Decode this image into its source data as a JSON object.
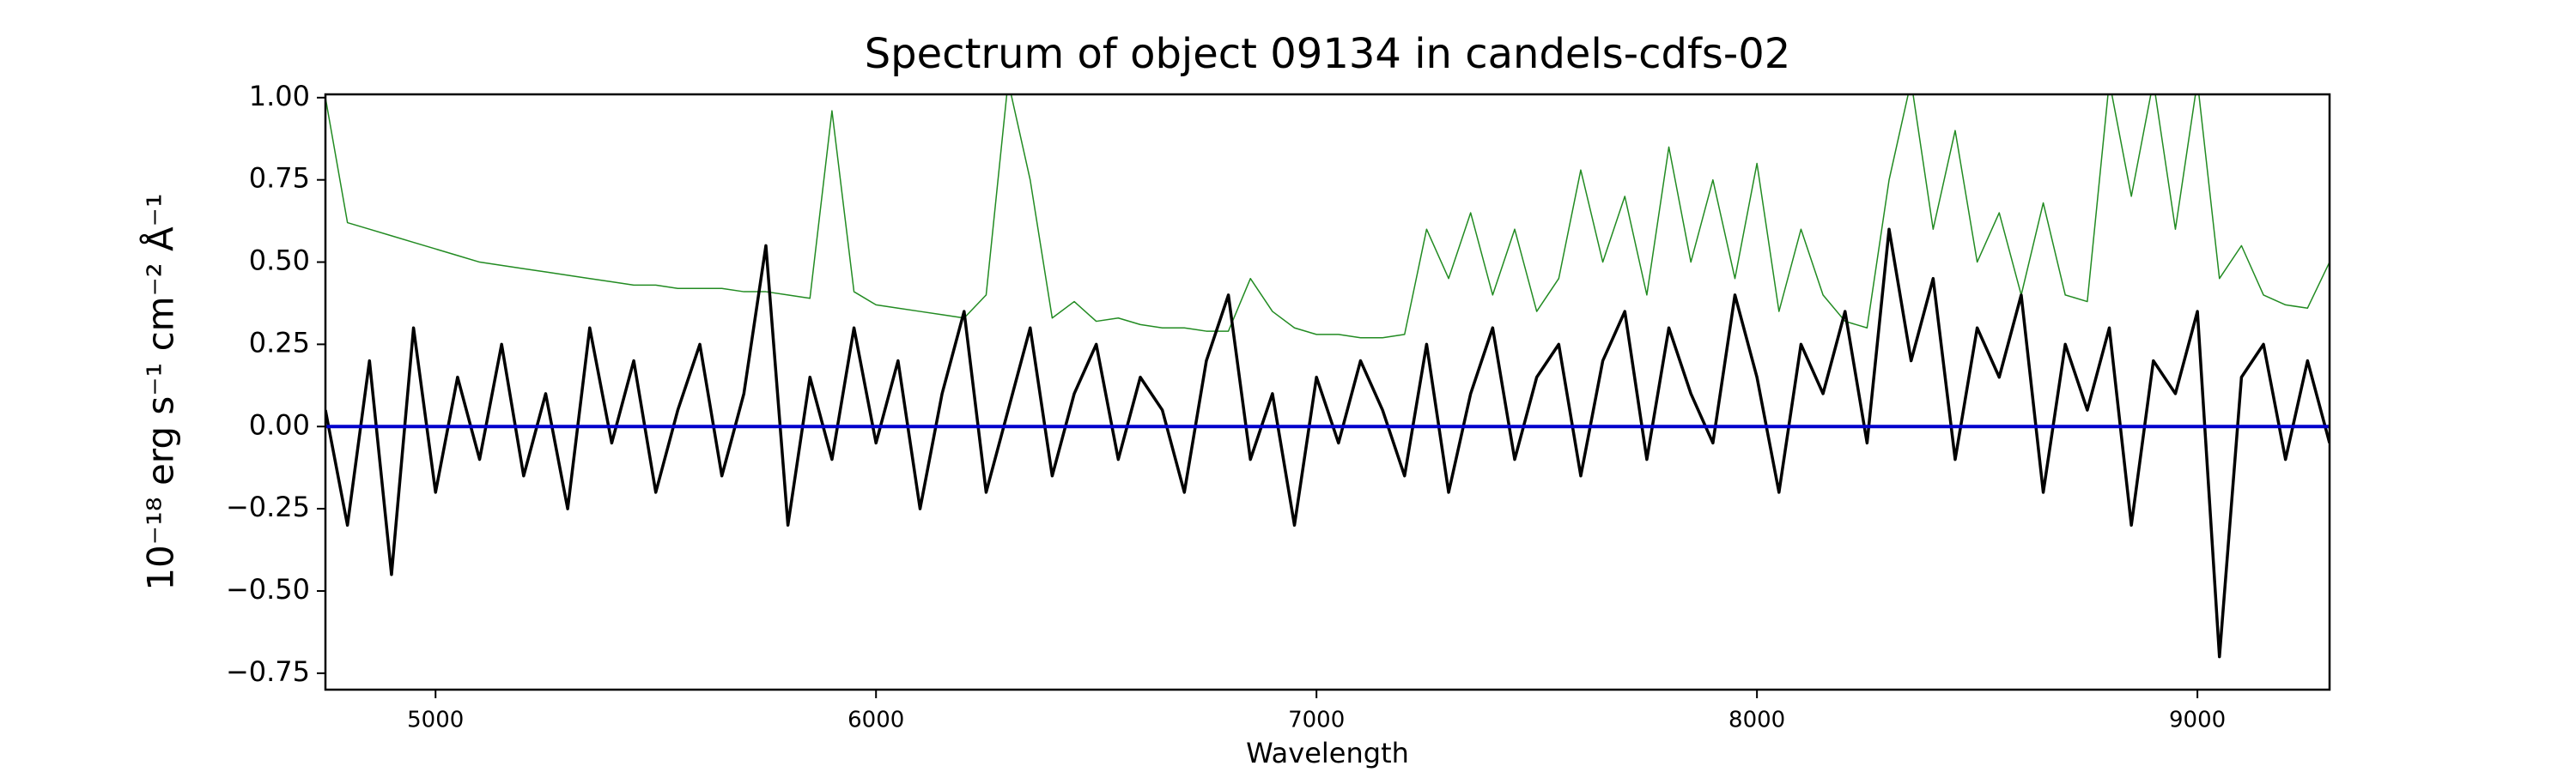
{
  "chart_data": {
    "type": "line",
    "title": "Spectrum of object 09134 in candels-cdfs-02",
    "xlabel": "Wavelength",
    "ylabel": "10⁻¹⁸ erg s⁻¹ cm⁻² Å⁻¹",
    "x": [
      4750,
      4800,
      4850,
      4900,
      4950,
      5000,
      5050,
      5100,
      5150,
      5200,
      5250,
      5300,
      5350,
      5400,
      5450,
      5500,
      5550,
      5600,
      5650,
      5700,
      5750,
      5800,
      5850,
      5900,
      5950,
      6000,
      6050,
      6100,
      6150,
      6200,
      6250,
      6300,
      6350,
      6400,
      6450,
      6500,
      6550,
      6600,
      6650,
      6700,
      6750,
      6800,
      6850,
      6900,
      6950,
      7000,
      7050,
      7100,
      7150,
      7200,
      7250,
      7300,
      7350,
      7400,
      7450,
      7500,
      7550,
      7600,
      7650,
      7700,
      7750,
      7800,
      7850,
      7900,
      7950,
      8000,
      8050,
      8100,
      8150,
      8200,
      8250,
      8300,
      8350,
      8400,
      8450,
      8500,
      8550,
      8600,
      8650,
      8700,
      8750,
      8800,
      8850,
      8900,
      8950,
      9000,
      9050,
      9100,
      9150,
      9200,
      9250,
      9300
    ],
    "series": [
      {
        "color": "#228b22",
        "linewidth": 1.5,
        "values": [
          1.0,
          0.62,
          0.6,
          0.58,
          0.56,
          0.54,
          0.52,
          0.5,
          0.49,
          0.48,
          0.47,
          0.46,
          0.45,
          0.44,
          0.43,
          0.43,
          0.42,
          0.42,
          0.42,
          0.41,
          0.41,
          0.4,
          0.39,
          0.96,
          0.41,
          0.37,
          0.36,
          0.35,
          0.34,
          0.33,
          0.4,
          1.05,
          0.75,
          0.33,
          0.38,
          0.32,
          0.33,
          0.31,
          0.3,
          0.3,
          0.29,
          0.29,
          0.45,
          0.35,
          0.3,
          0.28,
          0.28,
          0.27,
          0.27,
          0.28,
          0.6,
          0.45,
          0.65,
          0.4,
          0.6,
          0.35,
          0.45,
          0.78,
          0.5,
          0.7,
          0.4,
          0.85,
          0.5,
          0.75,
          0.45,
          0.8,
          0.35,
          0.6,
          0.4,
          0.32,
          0.3,
          0.75,
          1.05,
          0.6,
          0.9,
          0.5,
          0.65,
          0.4,
          0.68,
          0.4,
          0.38,
          1.05,
          0.7,
          1.05,
          0.6,
          1.05,
          0.45,
          0.55,
          0.4,
          0.37,
          0.36,
          0.5
        ]
      },
      {
        "color": "#000000",
        "linewidth": 3.5,
        "values": [
          0.05,
          -0.3,
          0.2,
          -0.45,
          0.3,
          -0.2,
          0.15,
          -0.1,
          0.25,
          -0.15,
          0.1,
          -0.25,
          0.3,
          -0.05,
          0.2,
          -0.2,
          0.05,
          0.25,
          -0.15,
          0.1,
          0.55,
          -0.3,
          0.15,
          -0.1,
          0.3,
          -0.05,
          0.2,
          -0.25,
          0.1,
          0.35,
          -0.2,
          0.05,
          0.3,
          -0.15,
          0.1,
          0.25,
          -0.1,
          0.15,
          0.05,
          -0.2,
          0.2,
          0.4,
          -0.1,
          0.1,
          -0.3,
          0.15,
          -0.05,
          0.2,
          0.05,
          -0.15,
          0.25,
          -0.2,
          0.1,
          0.3,
          -0.1,
          0.15,
          0.25,
          -0.15,
          0.2,
          0.35,
          -0.1,
          0.3,
          0.1,
          -0.05,
          0.4,
          0.15,
          -0.2,
          0.25,
          0.1,
          0.35,
          -0.05,
          0.6,
          0.2,
          0.45,
          -0.1,
          0.3,
          0.15,
          0.4,
          -0.2,
          0.25,
          0.05,
          0.3,
          -0.3,
          0.2,
          0.1,
          0.35,
          -0.7,
          0.15,
          0.25,
          -0.1,
          0.2,
          -0.05
        ]
      }
    ],
    "hlines": [
      {
        "value": 0,
        "color": "#0000cc"
      }
    ],
    "xlim": [
      4750,
      9300
    ],
    "xticks": [
      5000,
      6000,
      7000,
      8000,
      9000
    ],
    "ylim": [
      -0.8,
      1.01
    ],
    "yticks": [
      {
        "value": 1,
        "label": "1.00"
      },
      {
        "value": 0.75,
        "label": "0.75"
      },
      {
        "value": 0.5,
        "label": "0.50"
      },
      {
        "value": 0.25,
        "label": "0.25"
      },
      {
        "value": 0,
        "label": "0.00"
      },
      {
        "value": -0.25,
        "label": "−0.25"
      },
      {
        "value": -0.5,
        "label": "−0.50"
      },
      {
        "value": -0.75,
        "label": "−0.75"
      }
    ]
  }
}
